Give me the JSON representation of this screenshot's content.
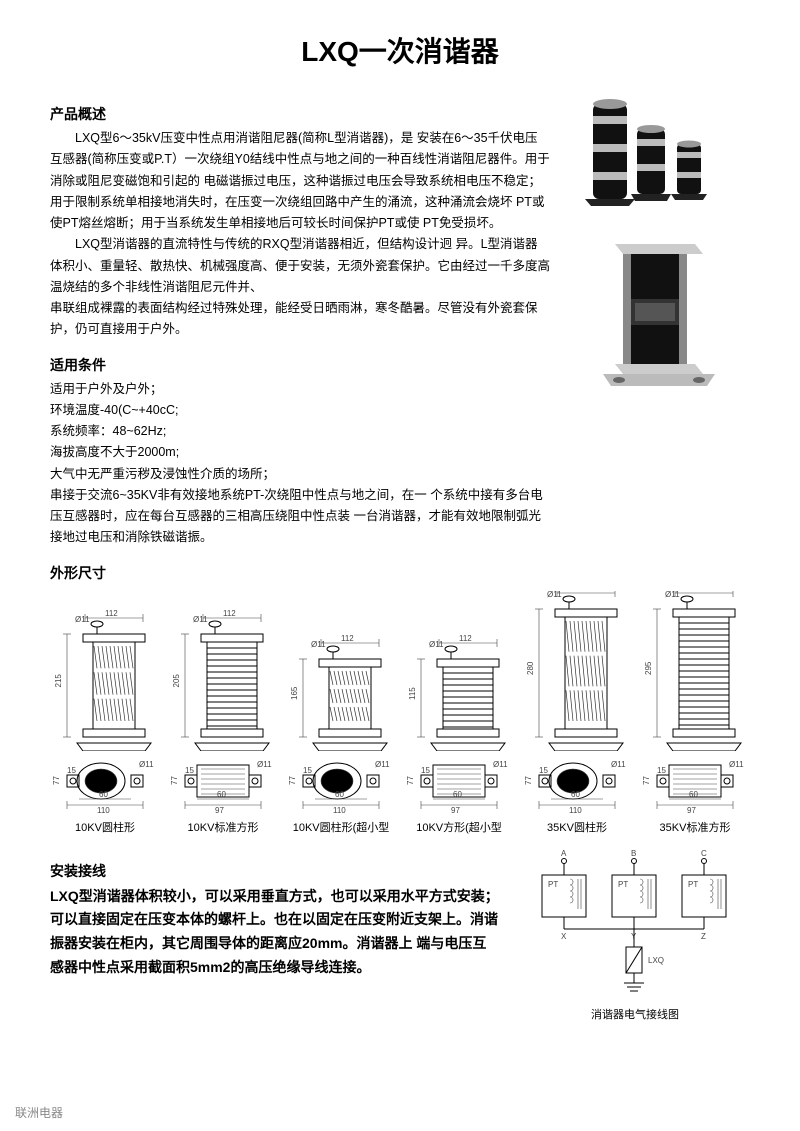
{
  "title": "LXQ一次消谐器",
  "sections": {
    "overview_h": "产品概述",
    "overview_p1": "LXQ型6～35kV压变中性点用消谐阻尼器(简称L型消谐器)，是 安装在6～35千伏电压互感器(简称压变或P.T）一次绕组Y0结线中性点与地之间的一种百线性消谐阻尼器件。用于消除或阻尼变磁饱和引起的 电磁谐振过电压，这种谐振过电压会导致系统相电压不稳定；用于限制系统单相接地消失时，在压变一次绕组回路中产生的涌流，这种涌流会烧坏 PT或使PT熔丝熔断；用于当系统发生单相接地后可较长时间保护PT或使 PT免受损坏。",
    "overview_p2": "LXQ型消谐器的直流特性与传统的RXQ型消谐器相近，但结构设计迥 异。L型消谐器体积小、重量轻、散热快、机械强度高、便于安装，无须外瓷套保护。它由经过一千多度高温烧结的多个非线性消谐阻尼元件并、",
    "overview_p3": "串联组成裸露的表面结构经过特殊处理，能经受日晒雨淋，寒冬酷暑。尽管没有外瓷套保护，仍可直接用于户外。",
    "cond_h": "适用条件",
    "cond_l1": "适用于户外及户外；",
    "cond_l2": "环境温度-40(C~+40cC;",
    "cond_l3": "系统频率：48~62Hz;",
    "cond_l4": "海拔高度不大于2000m;",
    "cond_l5": "大气中无严重污秽及浸蚀性介质的场所；",
    "cond_l6": "串接于交流6~35KV非有效接地系统PT-次绕阻中性点与地之间，在一 个系统中接有多台电压互感器时，应在每台互感器的三相高压绕阻中性点装 一台消谐器，才能有效地限制弧光接地过电压和消除铁磁谐振。",
    "dims_h": "外形尺寸",
    "install_h": "安装接线",
    "install_p": "LXQ型消谐器体积较小，可以采用垂直方式，也可以采用水平方式安装；可以直接固定在压变本体的螺杆上。也在以固定在压变附近支架上。消谐振器安装在柜内，其它周围导体的距离应20mm。消谐器上 端与电压互感器中性点采用截面积5mm2的高压绝缘导线连接。",
    "wiring_cap": "消谐器电气接线图"
  },
  "dims": [
    {
      "label": "10KV圆柱形",
      "h": "215",
      "w": "112",
      "d": "Ø11",
      "bw": "110",
      "bd": "60",
      "bs": "15",
      "bh": "77"
    },
    {
      "label": "10KV标准方形",
      "h": "205",
      "w": "112",
      "d": "Ø11",
      "bw": "97",
      "bd": "60",
      "bs": "15",
      "bh": "77",
      "square": true
    },
    {
      "label": "10KV圆柱形(超小型",
      "h": "165",
      "w": "112",
      "d": "Ø11",
      "bw": "110",
      "bd": "60",
      "bs": "15",
      "bh": "77",
      "short": true
    },
    {
      "label": "10KV方形(超小型",
      "h": "115",
      "w": "112",
      "d": "Ø11",
      "bw": "97",
      "bd": "60",
      "bs": "15",
      "bh": "77",
      "square": true,
      "short": true
    },
    {
      "label": "35KV圆柱形",
      "h": "280",
      "w": "112",
      "d": "Ø11",
      "bw": "110",
      "bd": "60",
      "bs": "15",
      "bh": "77",
      "tall": true
    },
    {
      "label": "35KV标准方形",
      "h": "295",
      "w": "112",
      "d": "Ø11",
      "bw": "97",
      "bd": "60",
      "bs": "15",
      "bh": "77",
      "square": true,
      "tall": true
    }
  ],
  "wiring_labels": {
    "A": "A",
    "B": "B",
    "C": "C",
    "PT": "PT",
    "X": "X",
    "Y": "Y",
    "Z": "Z",
    "LXQ": "LXQ"
  },
  "footer": "联洲电器",
  "colors": {
    "text": "#000000",
    "faint": "#888888",
    "line": "#000000"
  }
}
